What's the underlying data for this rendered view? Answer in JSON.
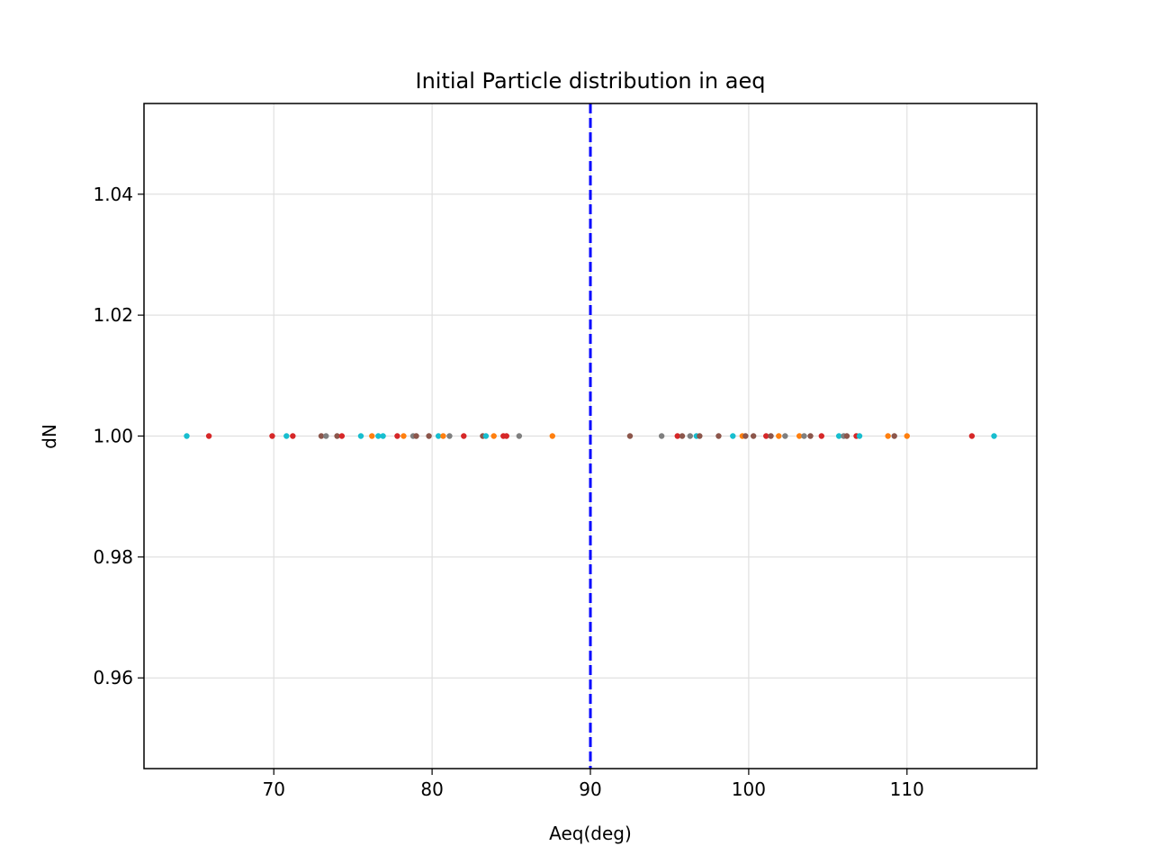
{
  "chart_data": {
    "type": "scatter",
    "title": "Initial Particle distribution in aeq",
    "xlabel": "Aeq(deg)",
    "ylabel": "dN",
    "xlim": [
      61.8,
      118.2
    ],
    "ylim": [
      0.945,
      1.055
    ],
    "xticks": [
      70,
      80,
      90,
      100,
      110
    ],
    "xtick_labels": [
      "70",
      "80",
      "90",
      "100",
      "110"
    ],
    "yticks": [
      0.96,
      0.98,
      1.0,
      1.02,
      1.04
    ],
    "ytick_labels": [
      "0.96",
      "0.98",
      "1.00",
      "1.02",
      "1.04"
    ],
    "grid": true,
    "reference_line": {
      "x": 90,
      "color": "#0000ff",
      "style": "dashed"
    },
    "point_y": 1.0,
    "colors": {
      "orange": "#ff7f0e",
      "red": "#d62728",
      "brown": "#8c564b",
      "gray": "#7f7f7f",
      "cyan": "#17becf",
      "pink": "#e377c2"
    },
    "points": [
      {
        "x": 64.5,
        "c": "cyan"
      },
      {
        "x": 65.9,
        "c": "red"
      },
      {
        "x": 69.9,
        "c": "red"
      },
      {
        "x": 70.8,
        "c": "cyan"
      },
      {
        "x": 71.2,
        "c": "red"
      },
      {
        "x": 73.0,
        "c": "brown"
      },
      {
        "x": 73.3,
        "c": "gray"
      },
      {
        "x": 74.0,
        "c": "brown"
      },
      {
        "x": 74.3,
        "c": "red"
      },
      {
        "x": 75.5,
        "c": "cyan"
      },
      {
        "x": 76.2,
        "c": "orange"
      },
      {
        "x": 76.6,
        "c": "cyan"
      },
      {
        "x": 76.9,
        "c": "cyan"
      },
      {
        "x": 77.8,
        "c": "red"
      },
      {
        "x": 78.2,
        "c": "orange"
      },
      {
        "x": 78.8,
        "c": "gray"
      },
      {
        "x": 79.0,
        "c": "brown"
      },
      {
        "x": 79.8,
        "c": "brown"
      },
      {
        "x": 80.4,
        "c": "cyan"
      },
      {
        "x": 80.7,
        "c": "orange"
      },
      {
        "x": 81.1,
        "c": "gray"
      },
      {
        "x": 82.0,
        "c": "red"
      },
      {
        "x": 83.2,
        "c": "brown"
      },
      {
        "x": 83.4,
        "c": "cyan"
      },
      {
        "x": 83.9,
        "c": "orange"
      },
      {
        "x": 84.5,
        "c": "red"
      },
      {
        "x": 84.7,
        "c": "red"
      },
      {
        "x": 85.5,
        "c": "gray"
      },
      {
        "x": 87.6,
        "c": "orange"
      },
      {
        "x": 92.5,
        "c": "brown"
      },
      {
        "x": 94.5,
        "c": "gray"
      },
      {
        "x": 95.5,
        "c": "red"
      },
      {
        "x": 95.8,
        "c": "brown"
      },
      {
        "x": 96.3,
        "c": "gray"
      },
      {
        "x": 96.7,
        "c": "cyan"
      },
      {
        "x": 96.9,
        "c": "brown"
      },
      {
        "x": 98.1,
        "c": "brown"
      },
      {
        "x": 99.0,
        "c": "cyan"
      },
      {
        "x": 99.6,
        "c": "orange"
      },
      {
        "x": 99.8,
        "c": "brown"
      },
      {
        "x": 100.3,
        "c": "brown"
      },
      {
        "x": 101.1,
        "c": "red"
      },
      {
        "x": 101.4,
        "c": "brown"
      },
      {
        "x": 101.9,
        "c": "orange"
      },
      {
        "x": 102.3,
        "c": "gray"
      },
      {
        "x": 103.2,
        "c": "orange"
      },
      {
        "x": 103.5,
        "c": "gray"
      },
      {
        "x": 103.9,
        "c": "brown"
      },
      {
        "x": 104.6,
        "c": "red"
      },
      {
        "x": 105.7,
        "c": "cyan"
      },
      {
        "x": 106.0,
        "c": "gray"
      },
      {
        "x": 106.2,
        "c": "brown"
      },
      {
        "x": 106.8,
        "c": "red"
      },
      {
        "x": 107.0,
        "c": "cyan"
      },
      {
        "x": 108.8,
        "c": "orange"
      },
      {
        "x": 109.2,
        "c": "brown"
      },
      {
        "x": 110.0,
        "c": "orange"
      },
      {
        "x": 114.1,
        "c": "red"
      },
      {
        "x": 115.5,
        "c": "cyan"
      }
    ]
  }
}
